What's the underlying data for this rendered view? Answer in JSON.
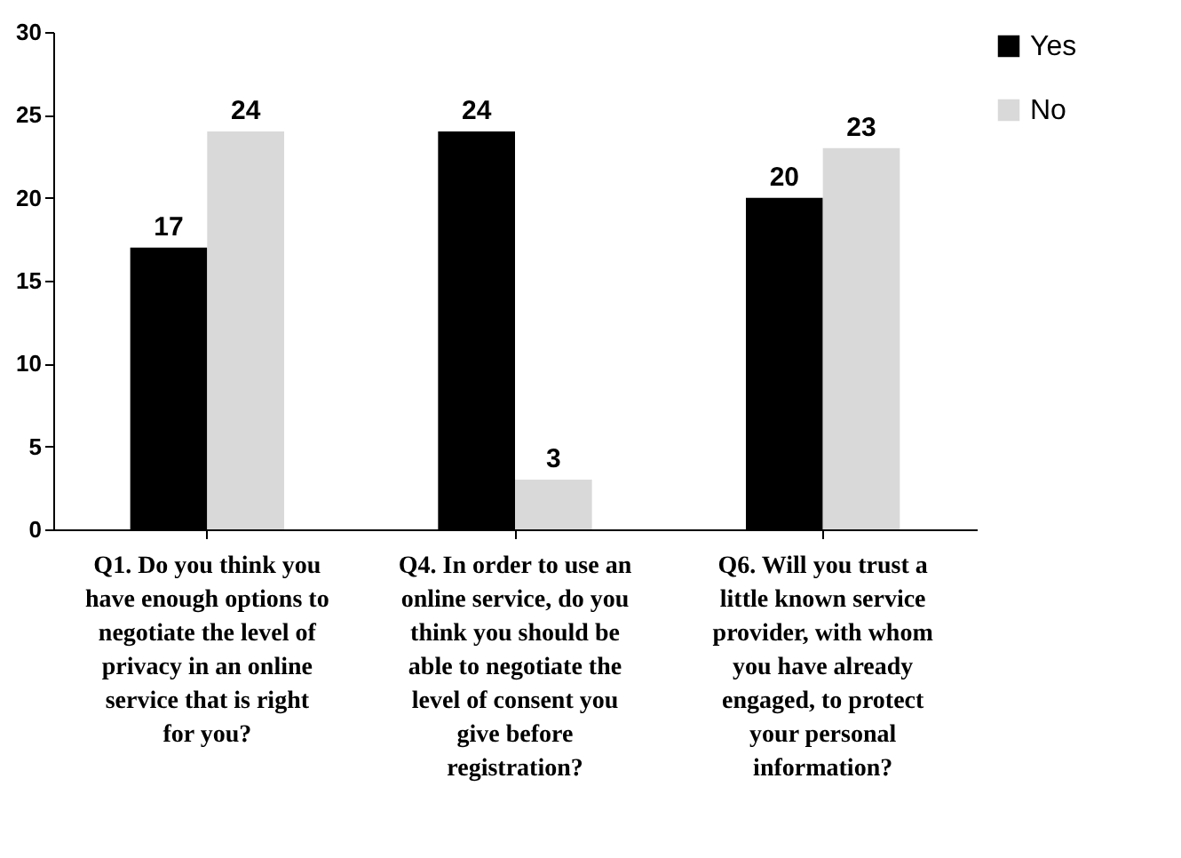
{
  "chart_data": {
    "type": "bar",
    "categories": [
      "Q1. Do you think you have enough options to negotiate the level of privacy in an online service that is right for you?",
      "Q4. In order to use an online service, do you think you should be able to negotiate the level of consent you give before registration?",
      "Q6. Will you trust a little known service provider, with whom you have already engaged, to protect your personal information?"
    ],
    "series": [
      {
        "name": "Yes",
        "color": "#000000",
        "values": [
          17,
          24,
          20
        ]
      },
      {
        "name": "No",
        "color": "#d9d9d9",
        "values": [
          24,
          3,
          23
        ]
      }
    ],
    "ylim": [
      0,
      30
    ],
    "yticks": [
      0,
      5,
      10,
      15,
      20,
      25,
      30
    ],
    "grid": false,
    "legend": "right",
    "data_labels": true
  }
}
